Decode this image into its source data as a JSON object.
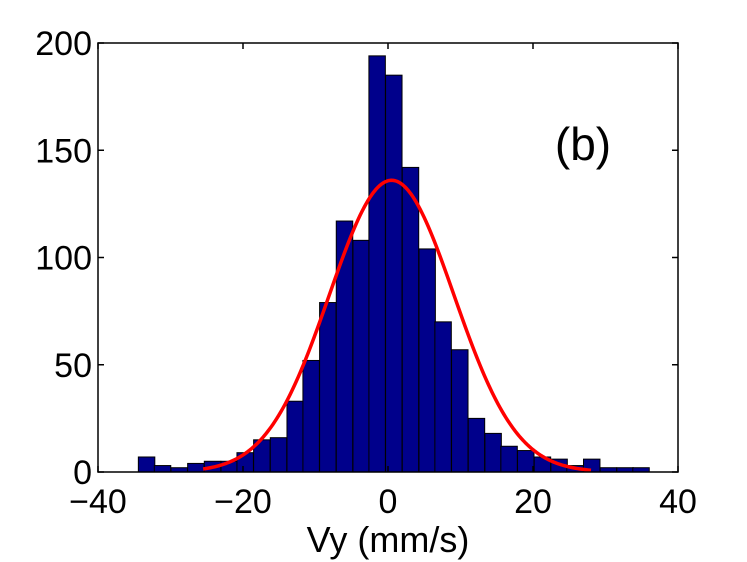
{
  "chart_data": {
    "type": "bar",
    "subtype": "histogram_with_gaussian_fit",
    "title": "",
    "xlabel": "Vy (mm/s)",
    "ylabel": "",
    "xlim": [
      -40,
      40
    ],
    "ylim": [
      0,
      200
    ],
    "x_ticks": [
      -40,
      -20,
      0,
      20,
      40
    ],
    "x_tick_labels": [
      "−40",
      "−20",
      "0",
      "20",
      "40"
    ],
    "y_ticks": [
      0,
      50,
      100,
      150,
      200
    ],
    "y_tick_labels": [
      "0",
      "50",
      "100",
      "150",
      "200"
    ],
    "annotation": "(b)",
    "bin_width": 2.27,
    "bin_centers": [
      -33.3,
      -31.1,
      -28.8,
      -26.5,
      -24.2,
      -21.9,
      -19.7,
      -17.4,
      -15.1,
      -12.8,
      -10.6,
      -8.3,
      -6.0,
      -3.7,
      -1.5,
      0.8,
      3.1,
      5.4,
      7.6,
      9.9,
      12.2,
      14.5,
      16.7,
      19.0,
      21.3,
      23.6,
      25.8,
      28.1,
      30.4,
      32.7,
      34.9
    ],
    "values": [
      7,
      3,
      2,
      4,
      5,
      5,
      9,
      15,
      16,
      33,
      52,
      79,
      117,
      108,
      194,
      185,
      142,
      104,
      70,
      57,
      25,
      18,
      12,
      10,
      7,
      6,
      3,
      6,
      2,
      2,
      2
    ],
    "bar_color": "#00008b",
    "bar_edge_color": "#000000",
    "series": [
      {
        "name": "gaussian fit",
        "type": "line",
        "color": "#ff0000",
        "x_range": [
          -25.5,
          28.0
        ],
        "amplitude": 136,
        "mean": 0.5,
        "sigma": 8.6
      }
    ]
  }
}
